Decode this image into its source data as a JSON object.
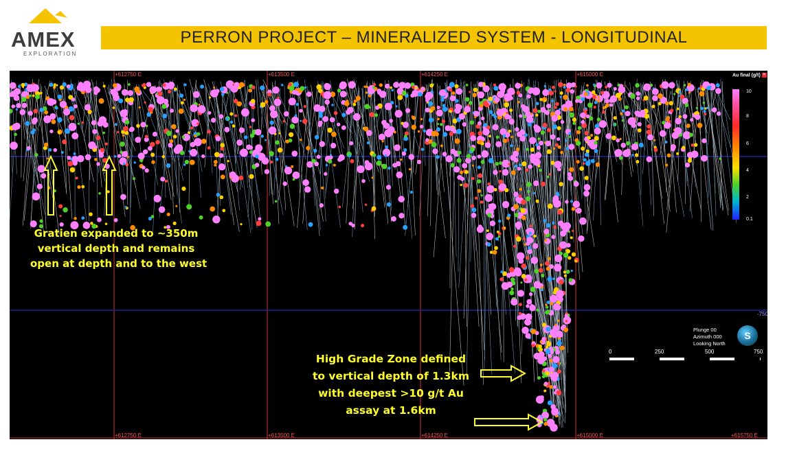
{
  "header": {
    "logo_name": "AMEX",
    "logo_sub": "EXPLORATION",
    "title": "PERRON PROJECT – MINERALIZED SYSTEM - LONGITUDINAL"
  },
  "section": {
    "easting_top": [
      "+612750 E",
      "+613500 E",
      "+614250 E",
      "+615000 E"
    ],
    "easting_bottom": [
      "+612750 E",
      "+613500 E",
      "+614250 E",
      "+615000 E",
      "+615750 E"
    ],
    "depth_label": "-750",
    "annotations": {
      "gratien": [
        "Gratien expanded to ~350m",
        "vertical depth and remains",
        "open at depth and to the west"
      ],
      "high_grade": [
        "High Grade Zone defined",
        "to vertical depth of 1.3km",
        "with deepest >10 g/t Au",
        "assay at 1.6km"
      ]
    },
    "legend": {
      "title": "Au final (g/t)",
      "ticks": [
        "10",
        "8",
        "6",
        "4",
        "2",
        "0.1"
      ]
    },
    "view": [
      "Plunge 00",
      "Azimuth 000",
      "Looking North"
    ],
    "scale_labels": [
      "0",
      "250",
      "500",
      "750"
    ],
    "compass_letter": "S",
    "colors": {
      "accent_yellow": "#f5c400",
      "grid_red": "#d03030",
      "grid_blue": "#2020a0",
      "annotation_yellow": "#ffff2a"
    }
  }
}
